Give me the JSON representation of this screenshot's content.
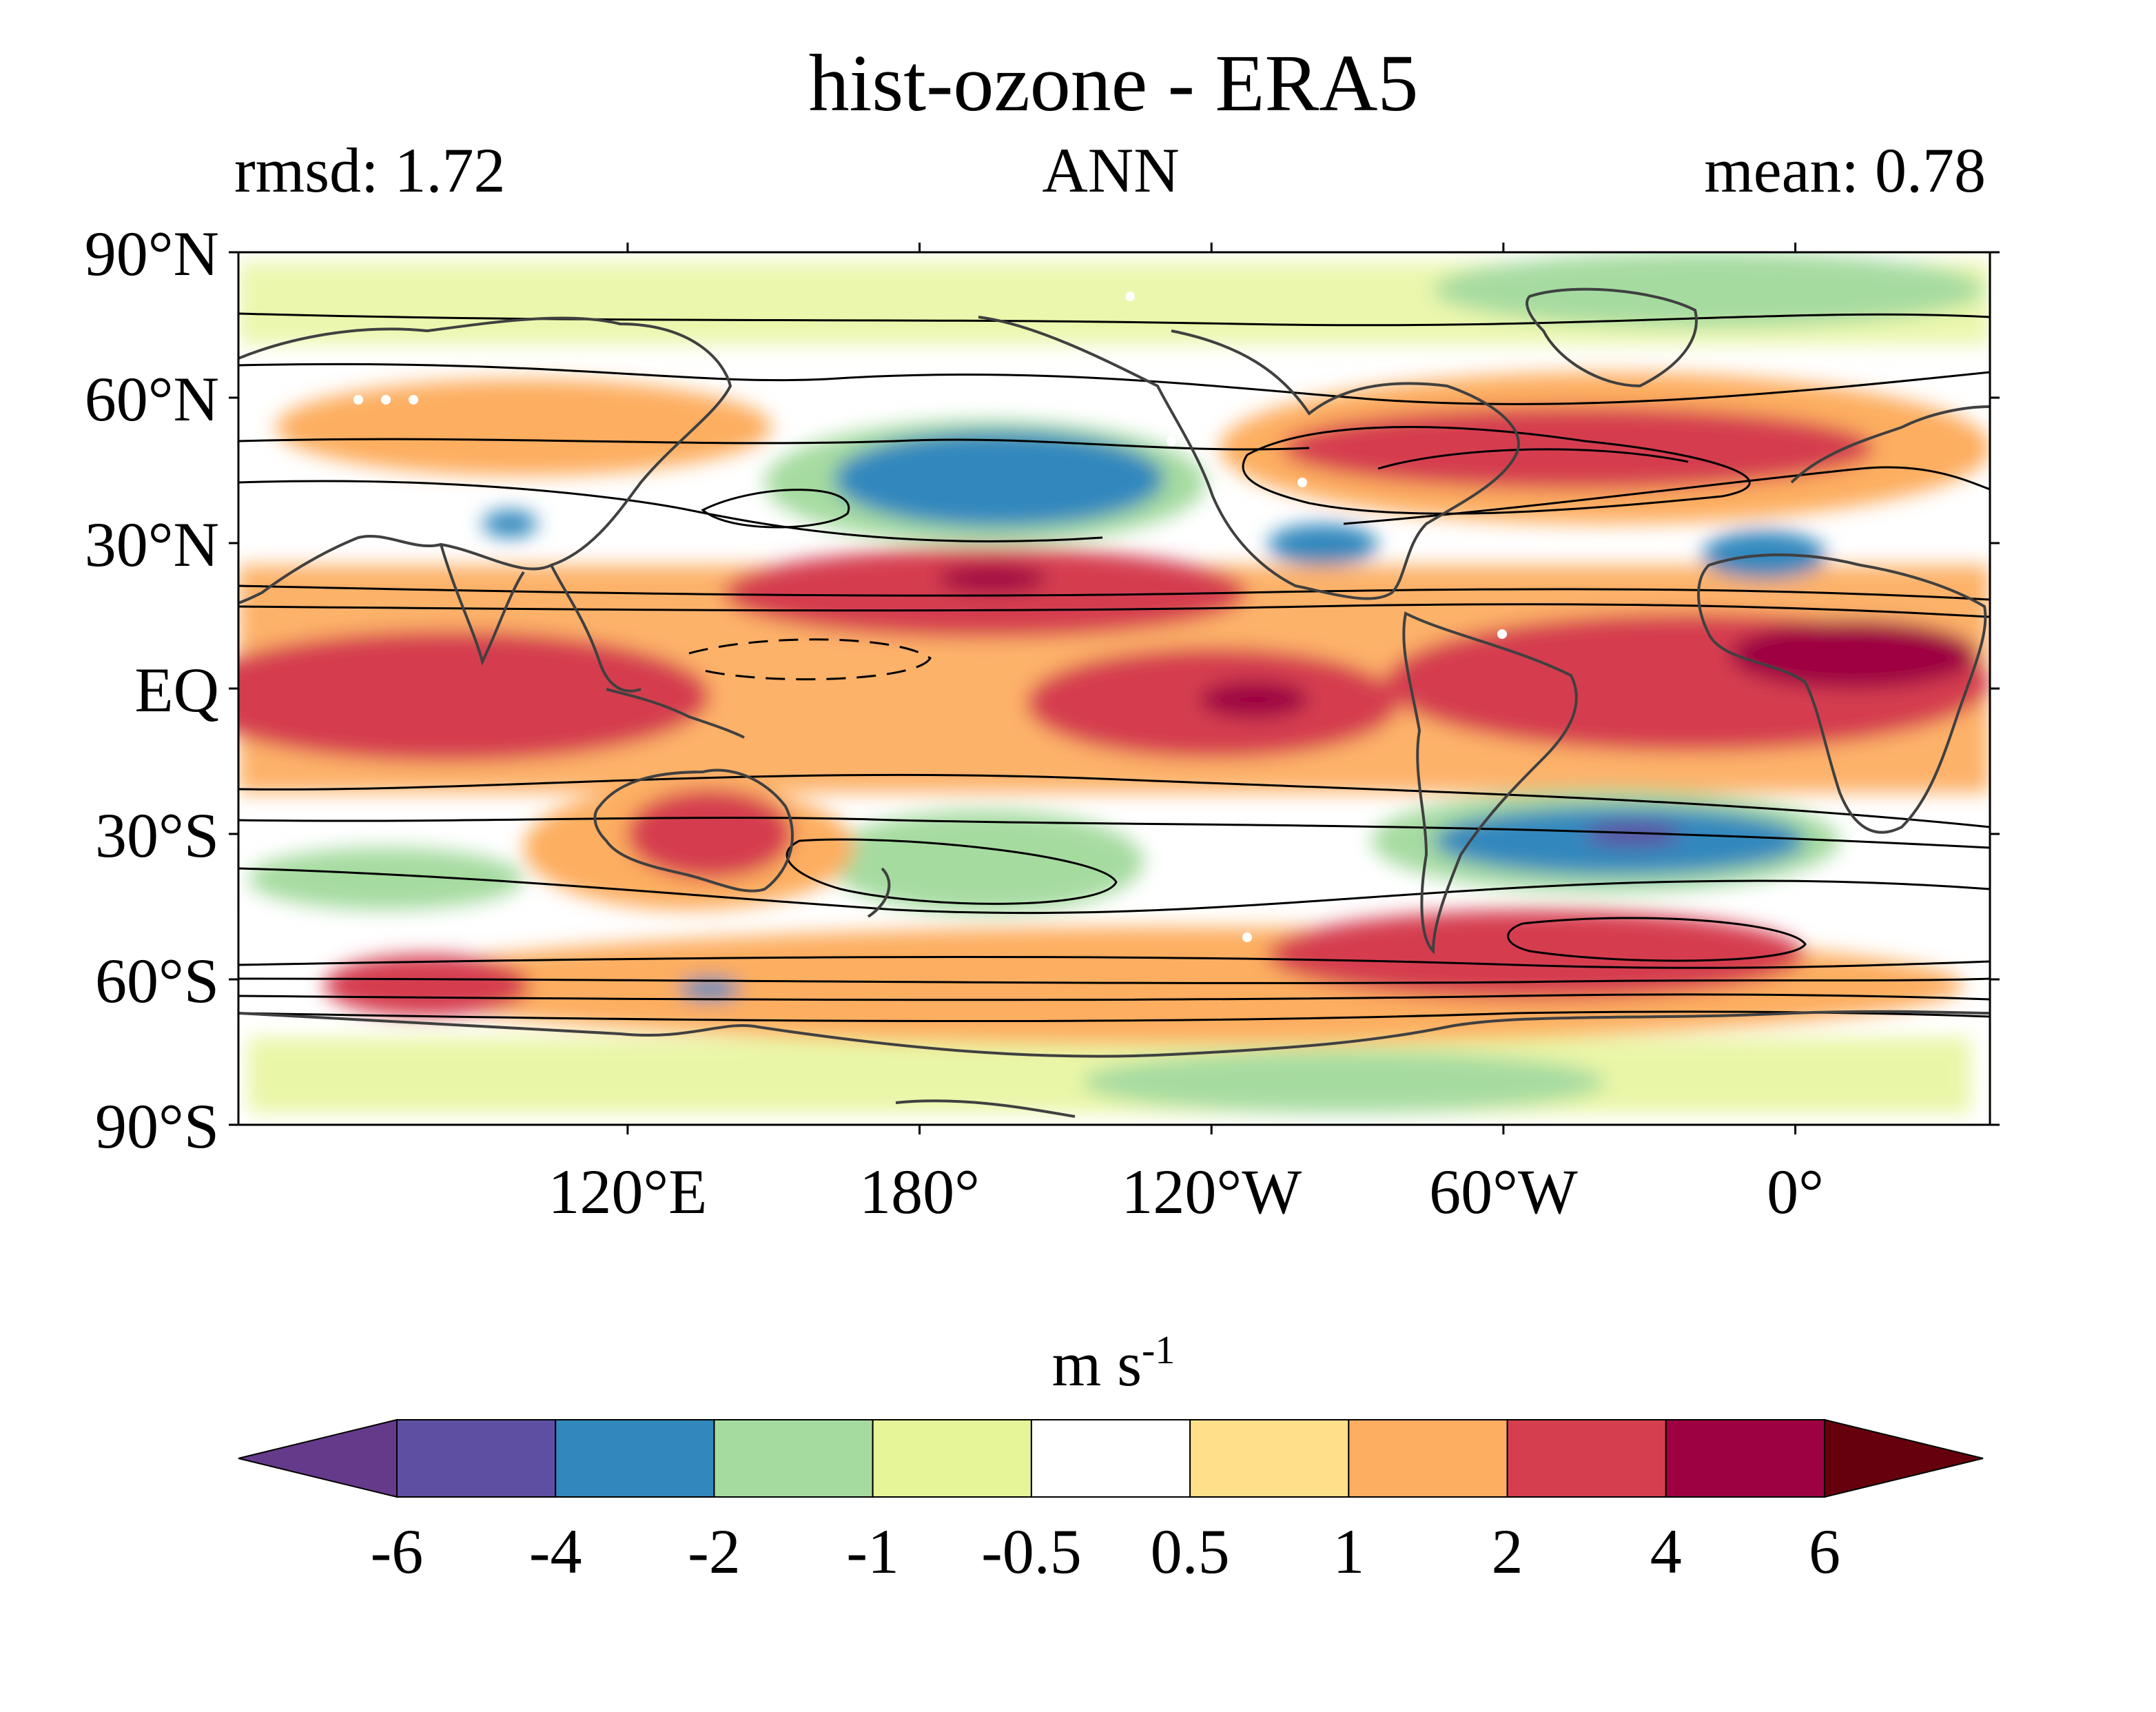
{
  "figure": {
    "title": "hist-ozone - ERA5",
    "stat_left": "rmsd: 1.72",
    "season": "ANN",
    "stat_right": "mean: 0.78"
  },
  "map": {
    "lat_labels": [
      "90°N",
      "60°N",
      "30°N",
      "EQ",
      "30°S",
      "60°S",
      "90°S"
    ],
    "lon_labels": [
      "120°E",
      "180°",
      "120°W",
      "60°W",
      "0°"
    ],
    "lon_range_deg_east": [
      40,
      400
    ]
  },
  "colorbar": {
    "units_base": "m s",
    "units_exp": "-1",
    "tick_labels": [
      "-6",
      "-4",
      "-2",
      "-1",
      "-0.5",
      "0.5",
      "1",
      "2",
      "4",
      "6"
    ],
    "bin_colors": [
      "#5e4fa2",
      "#3288bd",
      "#a6dba0",
      "#e6f598",
      "#ffffff",
      "#fee08b",
      "#fdae61",
      "#d53e4f",
      "#9e0142"
    ],
    "extend_low_color": "#653a8a",
    "extend_high_color": "#67000d"
  }
}
